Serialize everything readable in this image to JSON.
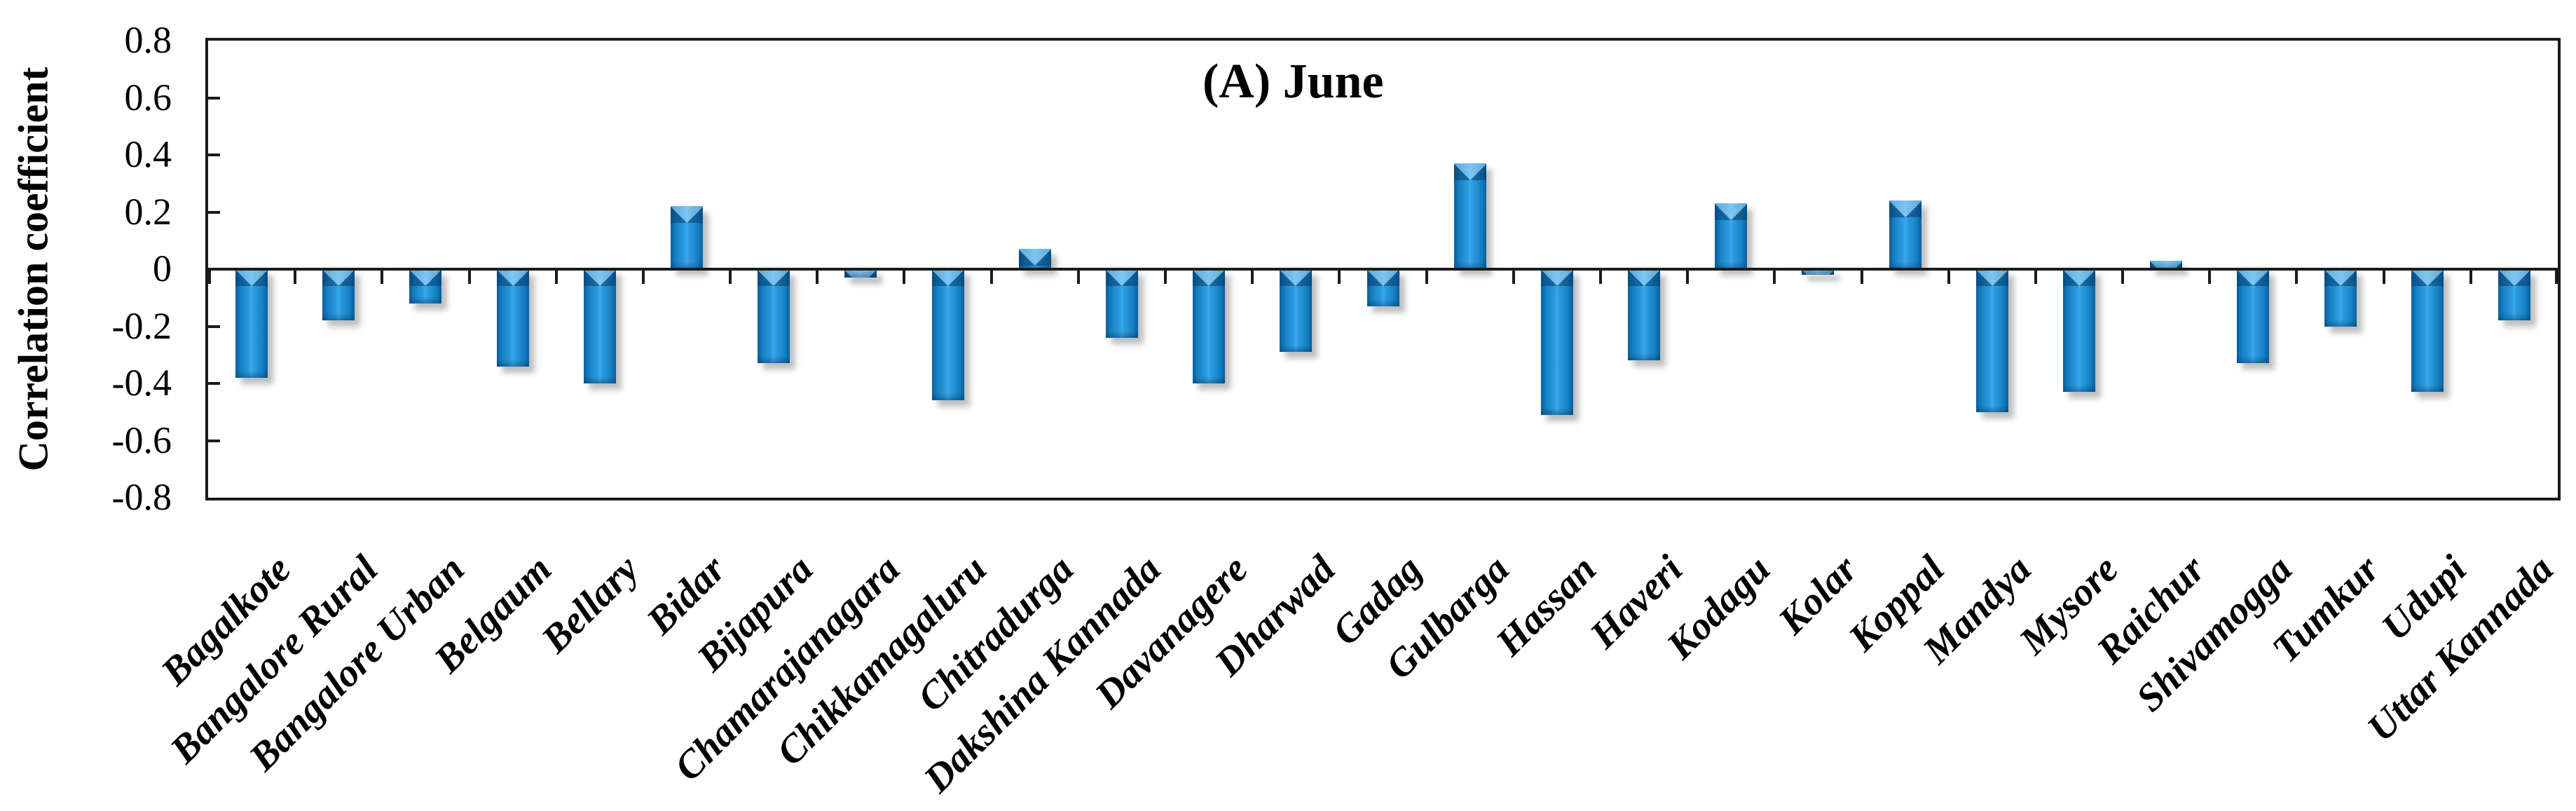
{
  "chart_data": {
    "type": "bar",
    "title": "(A) June",
    "ylabel": "Correlation coefficient",
    "xlabel": "",
    "categories": [
      "Bagalkote",
      "Bangalore Rural",
      "Bangalore Urban",
      "Belgaum",
      "Bellary",
      "Bidar",
      "Bijapura",
      "Chamarajanagara",
      "Chikkamagaluru",
      "Chitradurga",
      "Dakshina Kannada",
      "Davanagere",
      "Dharwad",
      "Gadag",
      "Gulbarga",
      "Hassan",
      "Haveri",
      "Kodagu",
      "Kolar",
      "Koppal",
      "Mandya",
      "Mysore",
      "Raichur",
      "Shivamogga",
      "Tumkur",
      "Udupi",
      "Uttar Kannada"
    ],
    "values": [
      -0.38,
      -0.18,
      -0.12,
      -0.34,
      -0.4,
      0.22,
      -0.33,
      -0.03,
      -0.46,
      0.07,
      -0.24,
      -0.4,
      -0.29,
      -0.13,
      0.37,
      -0.51,
      -0.32,
      0.23,
      -0.02,
      0.24,
      -0.5,
      -0.43,
      0.03,
      -0.33,
      -0.2,
      -0.43,
      -0.18
    ],
    "ylim": [
      -0.8,
      0.8
    ],
    "ytick_step": 0.2,
    "ytick_labels": [
      "0.8",
      "0.6",
      "0.4",
      "0.2",
      "0",
      "-0.2",
      "-0.4",
      "-0.6",
      "-0.8"
    ],
    "grid": false,
    "legend": false,
    "colors": {
      "bar_main": "#1b8fd4",
      "bar_light": "#3aa7e9",
      "bar_edge": "#0a5f9f",
      "axis": "#1b1b1b",
      "text": "#000000",
      "background": "#ffffff"
    }
  }
}
